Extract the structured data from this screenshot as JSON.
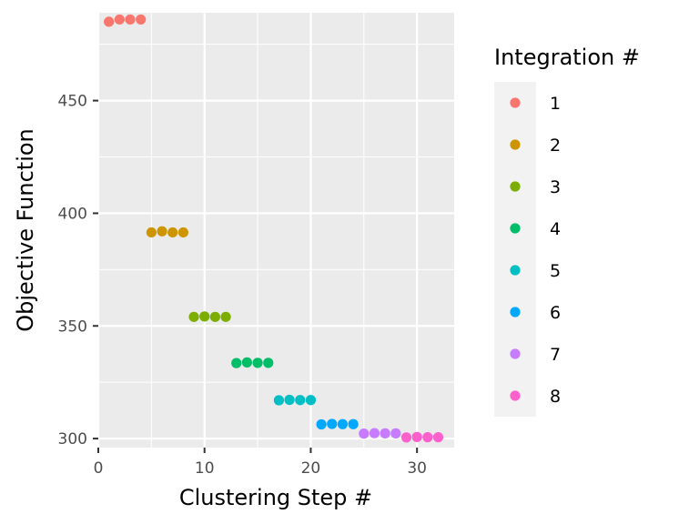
{
  "chart_data": {
    "type": "scatter",
    "xlabel": "Clustering Step #",
    "ylabel": "Objective Function",
    "xlim": [
      0,
      33.5
    ],
    "ylim": [
      296,
      489
    ],
    "x_ticks": [
      0,
      10,
      20,
      30
    ],
    "y_ticks": [
      300,
      350,
      400,
      450
    ],
    "grid": true,
    "legend": {
      "title": "Integration #",
      "placement": "right"
    },
    "series": [
      {
        "name": "1",
        "color": "#F8766D",
        "x": [
          1,
          2,
          3,
          4
        ],
        "y": [
          485,
          486,
          486,
          486
        ]
      },
      {
        "name": "2",
        "color": "#CD9600",
        "x": [
          5,
          6,
          7,
          8
        ],
        "y": [
          391.5,
          392,
          391.5,
          391.5
        ]
      },
      {
        "name": "3",
        "color": "#7CAE00",
        "x": [
          9,
          10,
          11,
          12
        ],
        "y": [
          354,
          354.2,
          354,
          354
        ]
      },
      {
        "name": "4",
        "color": "#00BE67",
        "x": [
          13,
          14,
          15,
          16
        ],
        "y": [
          333.5,
          333.8,
          333.6,
          333.6
        ]
      },
      {
        "name": "5",
        "color": "#00BFC4",
        "x": [
          17,
          18,
          19,
          20
        ],
        "y": [
          317,
          317.2,
          317.1,
          317.1
        ]
      },
      {
        "name": "6",
        "color": "#00A9FF",
        "x": [
          21,
          22,
          23,
          24
        ],
        "y": [
          306.3,
          306.5,
          306.4,
          306.4
        ]
      },
      {
        "name": "7",
        "color": "#C77CFF",
        "x": [
          25,
          26,
          27,
          28
        ],
        "y": [
          302.2,
          302.4,
          302.3,
          302.3
        ]
      },
      {
        "name": "8",
        "color": "#FF61CC",
        "x": [
          29,
          30,
          31,
          32
        ],
        "y": [
          300.5,
          300.7,
          300.6,
          300.6
        ]
      }
    ]
  }
}
